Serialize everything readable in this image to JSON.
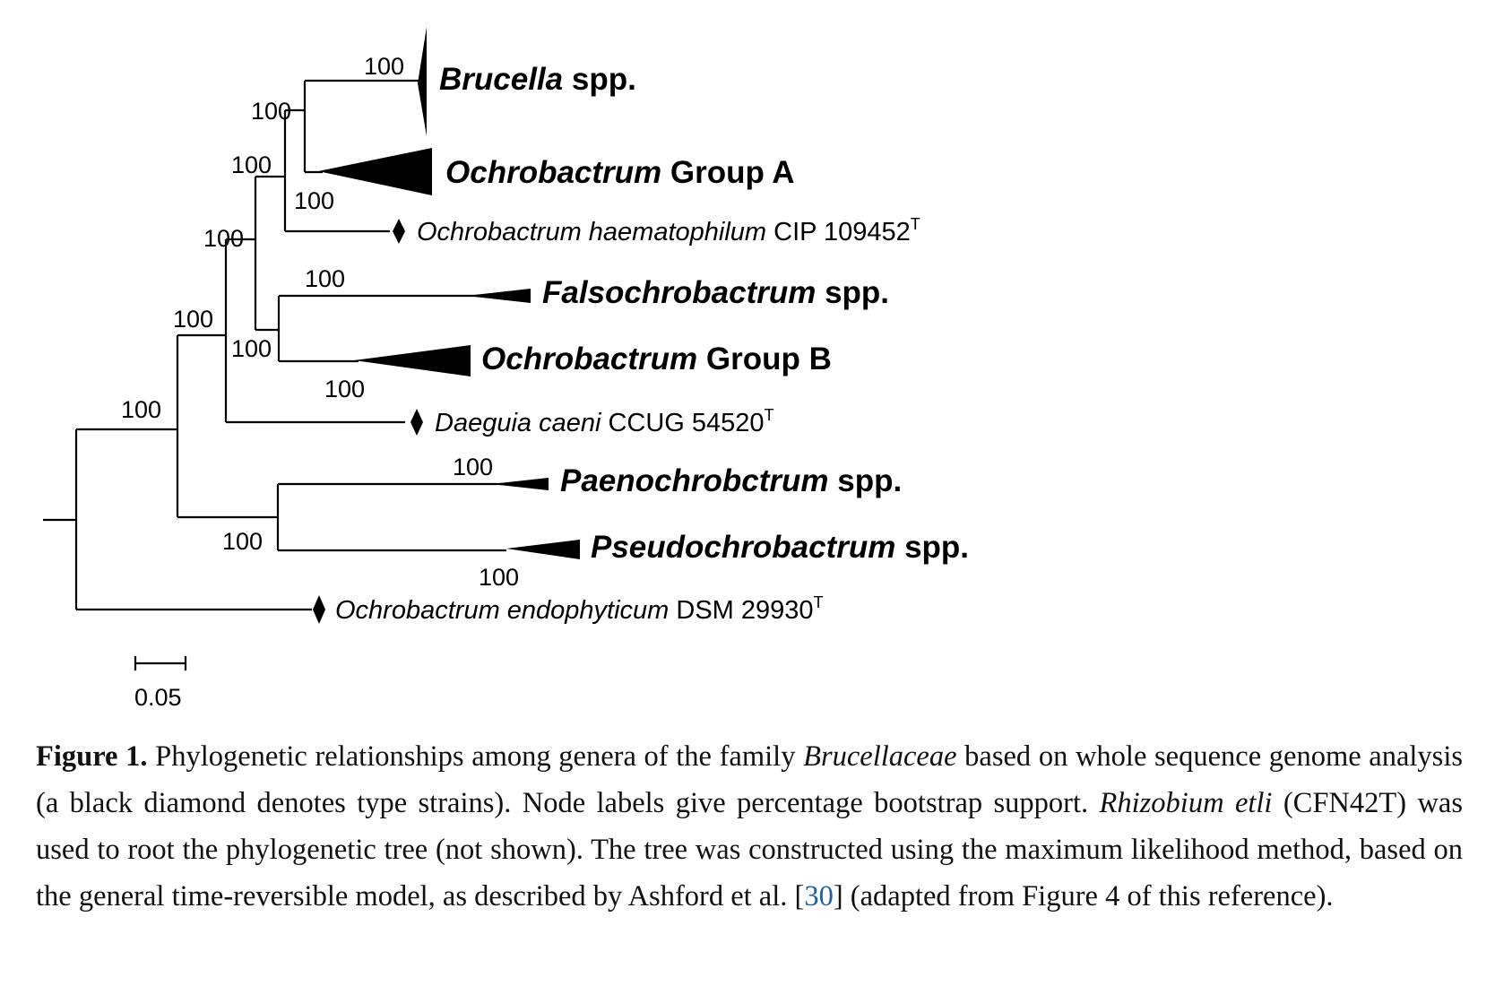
{
  "tree": {
    "clades": {
      "brucella": {
        "genus": "Brucella",
        "suffix": " spp."
      },
      "ochro_a": {
        "genus": "Ochrobactrum",
        "suffix": " Group A"
      },
      "falso": {
        "genus": "Falsochrobactrum",
        "suffix": " spp."
      },
      "ochro_b": {
        "genus": "Ochrobactrum",
        "suffix": " Group B"
      },
      "paeno": {
        "genus": "Paenochrobctrum",
        "suffix": " spp."
      },
      "pseudo": {
        "genus": "Pseudochrobactrum",
        "suffix": " spp."
      }
    },
    "strains": {
      "haem": {
        "species": "Ochrobactrum haematophilum",
        "code": " CIP 109452",
        "sup": "T"
      },
      "daeguia": {
        "species": "Daeguia caeni",
        "code": " CCUG 54520",
        "sup": "T"
      },
      "endo": {
        "species": "Ochrobactrum endophyticum",
        "code": " DSM 29930",
        "sup": "T"
      }
    },
    "bootstrap": "100",
    "scale_bar_label": "0.05"
  },
  "caption": {
    "label": "Figure 1.",
    "t1": " Phylogenetic relationships among genera of the family ",
    "i1": "Brucellaceae",
    "t2": " based on whole sequence genome analysis (a black diamond denotes type strains).  Node labels give percentage bootstrap support. ",
    "i2": "Rhizobium etli",
    "t3": " (CFN42T) was used to root the phylogenetic tree (not shown). The tree was constructed using the maximum likelihood method, based on the general time-reversible model, as described by Ashford et al. [",
    "ref": "30",
    "t4": "] (adapted from Figure 4 of this reference)."
  }
}
